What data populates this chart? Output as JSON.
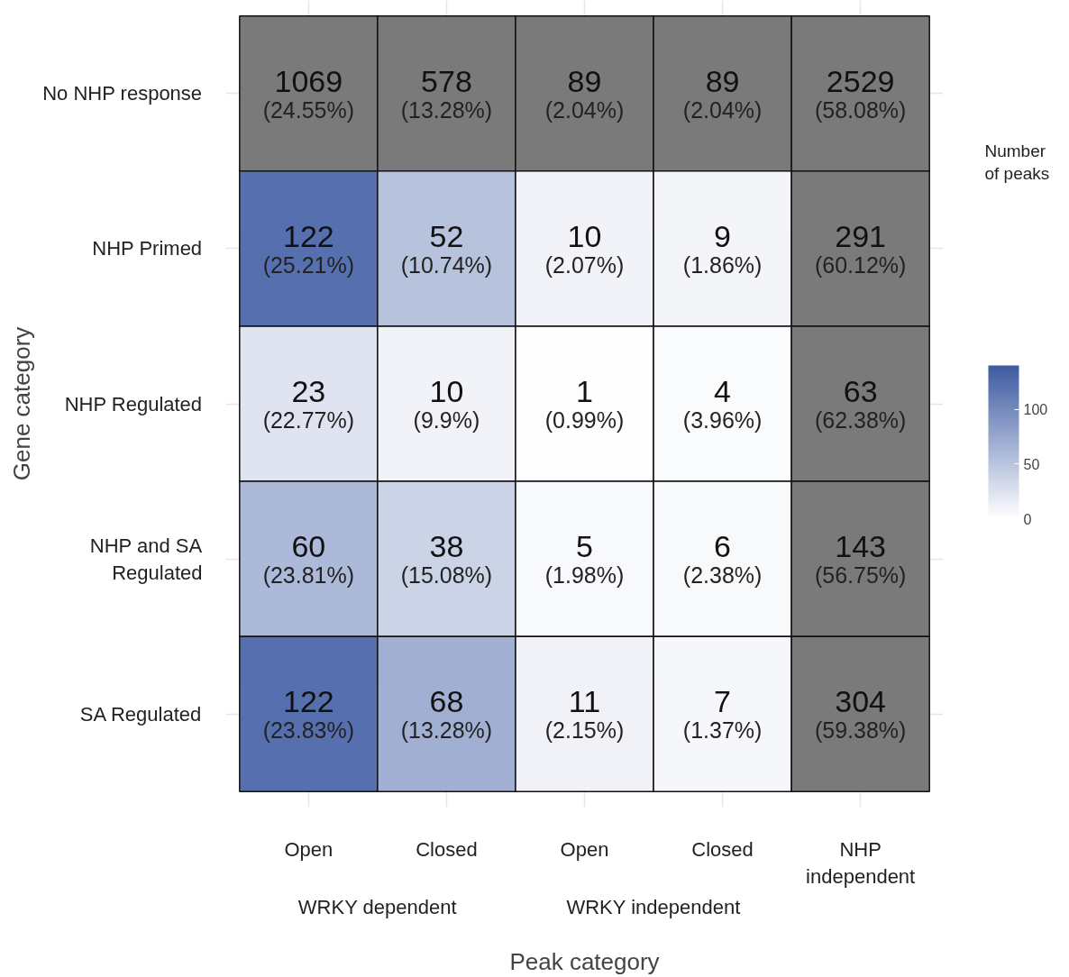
{
  "chart_data": {
    "type": "heatmap",
    "xlabel": "Peak category",
    "ylabel": "Gene category",
    "clabel": "Number\nof peaks",
    "categories": [
      "Open",
      "Closed",
      "Open",
      "Closed",
      "NHP\nindependent"
    ],
    "y_categories": [
      "No NHP response",
      "NHP Primed",
      "NHP Regulated",
      "NHP and SA\nRegulated",
      "SA Regulated"
    ],
    "annotations": [
      "WRKY dependent",
      "WRKY independent"
    ],
    "cells": [
      [
        null,
        null,
        null,
        null,
        null
      ],
      [
        122,
        52,
        10,
        9,
        null
      ],
      [
        23,
        10,
        1,
        4,
        null
      ],
      [
        60,
        38,
        5,
        6,
        null
      ],
      [
        122,
        68,
        11,
        7,
        null
      ]
    ],
    "cell_labels": [
      [
        "1069\n(24.55%)",
        "578\n(13.28%)",
        "89\n(2.04%)",
        "89\n(2.04%)",
        "2529\n(58.08%)"
      ],
      [
        "122\n(25.21%)",
        "52\n(10.74%)",
        "10\n(2.07%)",
        "9\n(1.86%)",
        "291\n(60.12%)"
      ],
      [
        "23\n(22.77%)",
        "10\n(9.9%)",
        "1\n(0.99%)",
        "4\n(3.96%)",
        "63\n(62.38%)"
      ],
      [
        "60\n(23.81%)",
        "38\n(15.08%)",
        "5\n(1.98%)",
        "6\n(2.38%)",
        "143\n(56.75%)"
      ],
      [
        "122\n(23.83%)",
        "68\n(13.28%)",
        "11\n(2.15%)",
        "7\n(1.37%)",
        "304\n(59.38%)"
      ]
    ],
    "color": "#3e5ca3",
    "clim": [
      0,
      140
    ],
    "cticks": [
      0,
      50,
      100
    ],
    "grid": true
  }
}
